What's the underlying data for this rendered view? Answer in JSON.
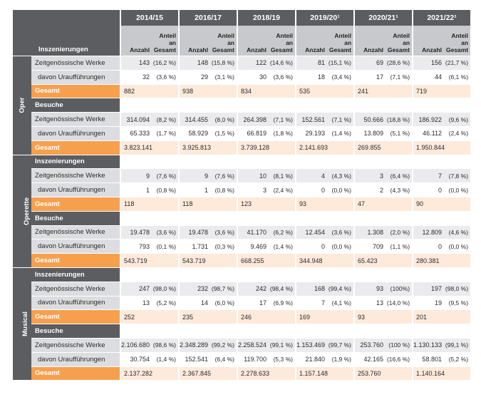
{
  "years": [
    "2014/15",
    "2016/17",
    "2018/19",
    "2019/20¹",
    "2020/21¹",
    "2021/22¹"
  ],
  "col_labels": {
    "anzahl": "Anzahl",
    "anteil": "Anteil\nan\nGesamt"
  },
  "header_row_label": "Inszenierungen",
  "sections": [
    {
      "name": "Oper",
      "rows": [
        {
          "type": "zg",
          "label": "Zeitgenössische Werke",
          "cells": [
            [
              "143",
              "(16,2 %)"
            ],
            [
              "148",
              "(15,8 %)"
            ],
            [
              "122",
              "(14,6 %)"
            ],
            [
              "81",
              "(15,1 %)"
            ],
            [
              "69",
              "(28,6 %)"
            ],
            [
              "156",
              "(21,7 %)"
            ]
          ]
        },
        {
          "type": "da",
          "label": "davon Uraufführungen",
          "cells": [
            [
              "32",
              "(3,6 %)"
            ],
            [
              "29",
              "(3,1 %)"
            ],
            [
              "30",
              "(3,6 %)"
            ],
            [
              "18",
              "(3,4 %)"
            ],
            [
              "17",
              "(7,1 %)"
            ],
            [
              "44",
              "(6,1 %)"
            ]
          ]
        },
        {
          "type": "ges",
          "label": "Gesamt",
          "cells": [
            "882",
            "938",
            "834",
            "535",
            "241",
            "719"
          ]
        },
        {
          "type": "sec",
          "label": "Besuche"
        },
        {
          "type": "zg",
          "label": "Zeitgenössische Werke",
          "cells": [
            [
              "314.094",
              "(8,2 %)"
            ],
            [
              "314.455",
              "(8,0 %)"
            ],
            [
              "264.398",
              "(7,1 %)"
            ],
            [
              "152.561",
              "(7,1 %)"
            ],
            [
              "50.666",
              "(18,8 %)"
            ],
            [
              "186.922",
              "(9,6 %)"
            ]
          ]
        },
        {
          "type": "da",
          "label": "davon Uraufführungen",
          "cells": [
            [
              "65.333",
              "(1,7 %)"
            ],
            [
              "58.929",
              "(1,5 %)"
            ],
            [
              "66.819",
              "(1,8 %)"
            ],
            [
              "29.193",
              "(1,4 %)"
            ],
            [
              "13.809",
              "(5,1 %)"
            ],
            [
              "46.112",
              "(2,4 %)"
            ]
          ]
        },
        {
          "type": "ges",
          "label": "Gesamt",
          "cells": [
            "3.823.141",
            "3.925.813",
            "3.739.128",
            "2.141.693",
            "269.855",
            "1.950.844"
          ]
        }
      ]
    },
    {
      "name": "Operette",
      "rows": [
        {
          "type": "sec",
          "label": "Inszenierungen"
        },
        {
          "type": "zg",
          "label": "Zeitgenössische Werke",
          "cells": [
            [
              "9",
              "(7,6 %)"
            ],
            [
              "9",
              "(7,6 %)"
            ],
            [
              "10",
              "(8,1 %)"
            ],
            [
              "4",
              "(4,3 %)"
            ],
            [
              "3",
              "(6,4 %)"
            ],
            [
              "7",
              "(7,8 %)"
            ]
          ]
        },
        {
          "type": "da",
          "label": "davon Uraufführungen",
          "cells": [
            [
              "1",
              "(0,8 %)"
            ],
            [
              "1",
              "(0,8 %)"
            ],
            [
              "3",
              "(2,4 %)"
            ],
            [
              "0",
              "(0,0 %)"
            ],
            [
              "2",
              "(4,3 %)"
            ],
            [
              "0",
              "(0,0 %)"
            ]
          ]
        },
        {
          "type": "ges",
          "label": "Gesamt",
          "cells": [
            "118",
            "118",
            "123",
            "93",
            "47",
            "90"
          ]
        },
        {
          "type": "sec",
          "label": "Besuche"
        },
        {
          "type": "zg",
          "label": "Zeitgenössische Werke",
          "cells": [
            [
              "19.478",
              "(3,6 %)"
            ],
            [
              "19.478",
              "(3,6 %)"
            ],
            [
              "41.170",
              "(6,2 %)"
            ],
            [
              "12.454",
              "(3,6 %)"
            ],
            [
              "1.308",
              "(2,0 %)"
            ],
            [
              "12.809",
              "(4,6 %)"
            ]
          ]
        },
        {
          "type": "da",
          "label": "davon Uraufführungen",
          "cells": [
            [
              "793",
              "(0,1 %)"
            ],
            [
              "1.731",
              "(0,3 %)"
            ],
            [
              "9.469",
              "(1,4 %)"
            ],
            [
              "0",
              "(0,0 %)"
            ],
            [
              "709",
              "(1,1 %)"
            ],
            [
              "0",
              "(0,0 %)"
            ]
          ]
        },
        {
          "type": "ges",
          "label": "Gesamt",
          "cells": [
            "543.719",
            "543.719",
            "668.255",
            "344.948",
            "65.423",
            "280.381"
          ]
        }
      ]
    },
    {
      "name": "Musical",
      "rows": [
        {
          "type": "sec",
          "label": "Inszenierungen"
        },
        {
          "type": "zg",
          "label": "Zeitgenössische Werke",
          "cells": [
            [
              "247",
              "(98,0 %)"
            ],
            [
              "232",
              "(98,7 %)"
            ],
            [
              "242",
              "(98,4 %)"
            ],
            [
              "168",
              "(99,4 %)"
            ],
            [
              "93",
              "(100%)"
            ],
            [
              "197",
              "(98,0 %)"
            ]
          ]
        },
        {
          "type": "da",
          "label": "davon Uraufführungen",
          "cells": [
            [
              "13",
              "(5,2 %)"
            ],
            [
              "14",
              "(6,0 %)"
            ],
            [
              "17",
              "(6,9 %)"
            ],
            [
              "7",
              "(4,1 %)"
            ],
            [
              "13",
              "(14,0 %)"
            ],
            [
              "19",
              "(9,5 %)"
            ]
          ]
        },
        {
          "type": "ges",
          "label": "Gesamt",
          "cells": [
            "252",
            "235",
            "246",
            "169",
            "93",
            "201"
          ]
        },
        {
          "type": "sec",
          "label": "Besuche"
        },
        {
          "type": "zg",
          "label": "Zeitgenössische Werke",
          "cells": [
            [
              "2.106.680",
              "(98,6 %)"
            ],
            [
              "2.348.289",
              "(99,2 %)"
            ],
            [
              "2.258.524",
              "(99,1 %)"
            ],
            [
              "1.153.469",
              "(99,7 %)"
            ],
            [
              "253.760",
              "(100 %)"
            ],
            [
              "1.130.133",
              "(99,1 %)"
            ]
          ]
        },
        {
          "type": "da",
          "label": "davon Uraufführungen",
          "cells": [
            [
              "30.754",
              "(1,4 %)"
            ],
            [
              "152.541",
              "(6,4 %)"
            ],
            [
              "119.700",
              "(5,3 %)"
            ],
            [
              "21.840",
              "(1,9 %)"
            ],
            [
              "42.165",
              "(16,6 %)"
            ],
            [
              "58.801",
              "(5,2 %)"
            ]
          ]
        },
        {
          "type": "ges",
          "label": "Gesamt",
          "cells": [
            "2.137.282",
            "2.367.845",
            "2.278.633",
            "1.157.148",
            "253.760",
            "1.140.164"
          ]
        }
      ]
    }
  ]
}
